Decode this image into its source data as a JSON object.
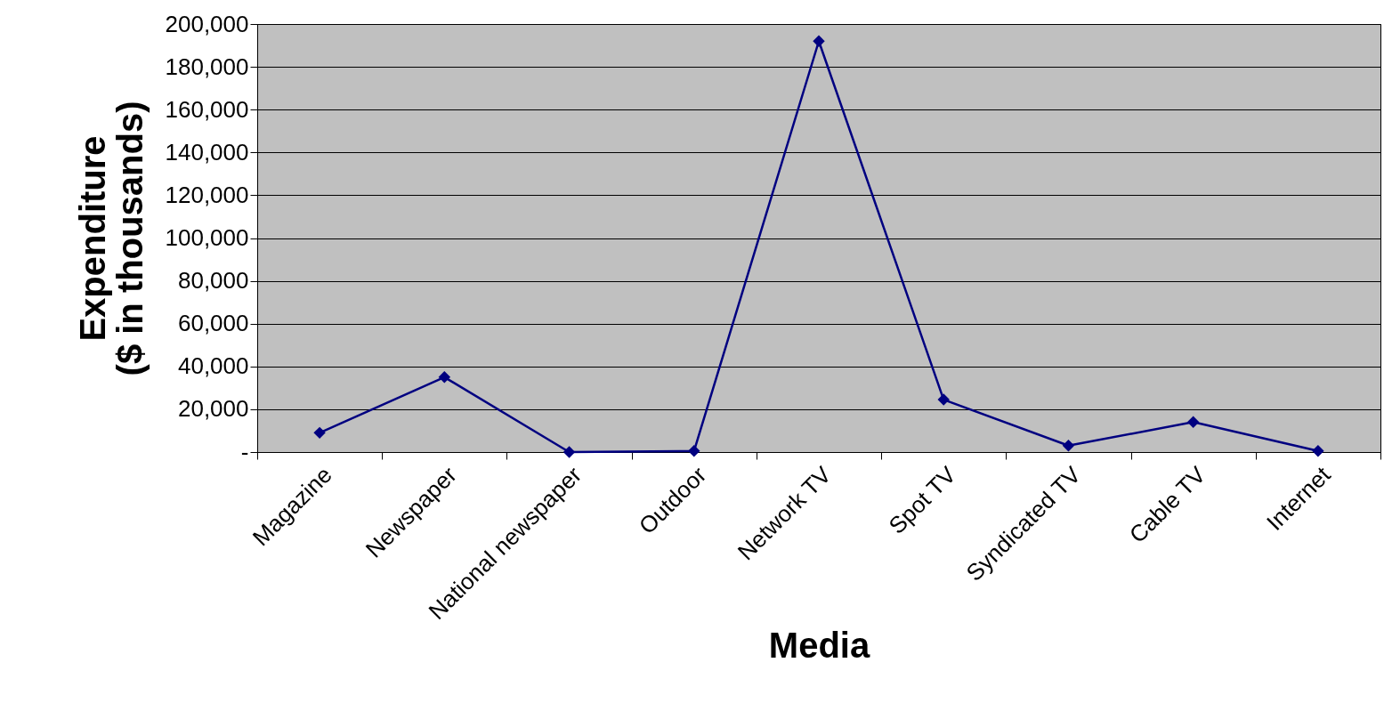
{
  "chart_data": {
    "type": "line",
    "xlabel": "Media",
    "ylabel": "Expenditure\n($ in thousands)",
    "categories": [
      "Magazine",
      "Newspaper",
      "National newspaper",
      "Outdoor",
      "Network TV",
      "Spot TV",
      "Syndicated TV",
      "Cable TV",
      "Internet"
    ],
    "series": [
      {
        "color": "#000080",
        "values": [
          9000,
          35000,
          0,
          500,
          192000,
          24500,
          3000,
          14000,
          500
        ]
      }
    ],
    "ylim": [
      0,
      200000
    ],
    "yticks": [
      {
        "value": 0,
        "label": "-"
      },
      {
        "value": 20000,
        "label": "20,000"
      },
      {
        "value": 40000,
        "label": "40,000"
      },
      {
        "value": 60000,
        "label": "60,000"
      },
      {
        "value": 80000,
        "label": "80,000"
      },
      {
        "value": 100000,
        "label": "100,000"
      },
      {
        "value": 120000,
        "label": "120,000"
      },
      {
        "value": 140000,
        "label": "140,000"
      },
      {
        "value": 160000,
        "label": "160,000"
      },
      {
        "value": 180000,
        "label": "180,000"
      },
      {
        "value": 200000,
        "label": "200,000"
      }
    ],
    "grid": "y",
    "marker": "diamond",
    "line_style": "solid"
  }
}
